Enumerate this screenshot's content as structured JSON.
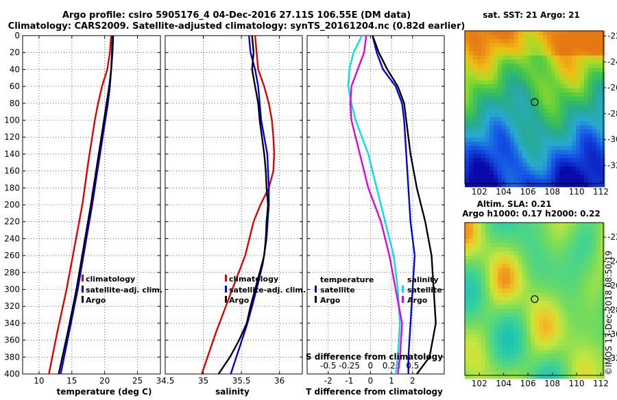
{
  "header": {
    "line1": "Argo profile: csiro 5905176_4 04-Dec-2016 27.11S 106.55E (DM data)",
    "line2": "Climatology: CARS2009. Satellite-adjusted climatology: synTS_20161204.nc (0.82d earlier)"
  },
  "watermark": "©IMOS 13-Dec-2018 08:50:19",
  "colors": {
    "climatology": "#e00000",
    "satellite": "#0000e0",
    "argo": "#000000",
    "t_diff": "#00e0e0",
    "s_diff": "#e000e0"
  },
  "chart_data": [
    {
      "id": "temperature",
      "type": "line",
      "xlabel": "temperature (deg C)",
      "xlim": [
        7.5,
        28.5
      ],
      "xticks": [
        10,
        15,
        20,
        25
      ],
      "ylim": [
        400,
        0
      ],
      "yticks": [
        0,
        20,
        40,
        60,
        80,
        100,
        120,
        140,
        160,
        180,
        200,
        220,
        240,
        260,
        280,
        300,
        320,
        340,
        360,
        380,
        400
      ],
      "grid": true,
      "legend": [
        "climatology",
        "satellite-adj. clim.",
        "Argo"
      ],
      "series": [
        {
          "name": "climatology",
          "color": "#e00000",
          "depth": [
            0,
            20,
            40,
            60,
            80,
            100,
            150,
            200,
            250,
            300,
            350,
            400
          ],
          "values": [
            21.0,
            20.8,
            20.4,
            19.6,
            19.0,
            18.5,
            17.5,
            16.6,
            15.4,
            14.2,
            12.8,
            11.5
          ]
        },
        {
          "name": "satellite-adj. clim.",
          "color": "#0000e0",
          "depth": [
            0,
            20,
            40,
            60,
            80,
            100,
            150,
            200,
            250,
            300,
            350,
            400
          ],
          "values": [
            21.2,
            21.1,
            21.0,
            20.8,
            20.5,
            20.1,
            19.1,
            18.1,
            17.0,
            15.9,
            14.6,
            13.3
          ]
        },
        {
          "name": "Argo",
          "color": "#000000",
          "depth": [
            0,
            20,
            40,
            60,
            80,
            100,
            150,
            200,
            250,
            300,
            350,
            400
          ],
          "values": [
            21.3,
            21.2,
            21.0,
            20.7,
            20.3,
            19.9,
            18.9,
            17.9,
            16.8,
            15.7,
            14.4,
            13.0
          ]
        }
      ]
    },
    {
      "id": "salinity",
      "type": "line",
      "xlabel": "salinity",
      "xlim": [
        34.5,
        36.3
      ],
      "xticks": [
        34.5,
        35,
        35.5,
        36
      ],
      "xtick_labels": [
        "34.5",
        "35",
        "35.5",
        "36"
      ],
      "ylim": [
        400,
        0
      ],
      "grid": true,
      "legend": [
        "climatology",
        "satellite-adj. clim.",
        "Argo"
      ],
      "series": [
        {
          "name": "climatology",
          "color": "#e00000",
          "depth": [
            0,
            20,
            40,
            60,
            80,
            100,
            120,
            140,
            160,
            180,
            200,
            220,
            260,
            300,
            350,
            400
          ],
          "values": [
            35.68,
            35.7,
            35.72,
            35.8,
            35.86,
            35.9,
            35.92,
            35.93,
            35.92,
            35.86,
            35.75,
            35.66,
            35.55,
            35.38,
            35.17,
            34.98
          ]
        },
        {
          "name": "satellite-adj. clim.",
          "color": "#0000e0",
          "depth": [
            0,
            20,
            40,
            60,
            80,
            100,
            140,
            180,
            200,
            240,
            270,
            300,
            340,
            400
          ],
          "values": [
            35.6,
            35.62,
            35.68,
            35.72,
            35.74,
            35.76,
            35.84,
            35.86,
            35.86,
            35.83,
            35.78,
            35.7,
            35.58,
            35.36
          ]
        },
        {
          "name": "Argo",
          "color": "#000000",
          "depth": [
            0,
            10,
            20,
            40,
            60,
            80,
            100,
            120,
            140,
            160,
            180,
            200,
            220,
            240,
            260,
            280,
            300,
            320,
            340,
            360,
            380,
            400
          ],
          "values": [
            35.64,
            35.65,
            35.66,
            35.64,
            35.68,
            35.72,
            35.74,
            35.77,
            35.8,
            35.82,
            35.83,
            35.85,
            35.83,
            35.82,
            35.8,
            35.74,
            35.68,
            35.62,
            35.57,
            35.47,
            35.35,
            35.2
          ]
        }
      ]
    },
    {
      "id": "difference",
      "type": "line",
      "xlabel": "T difference from climatology",
      "xlim": [
        -3,
        3.5
      ],
      "xticks": [
        -2,
        -1,
        0,
        1,
        2
      ],
      "top_axis_label": "S difference from climatology",
      "top_ticks": [
        "-0.5",
        "-0.25",
        "0",
        "0.25",
        "0.5"
      ],
      "top_tick_values": [
        -2,
        -1,
        0,
        1,
        2
      ],
      "ylim": [
        400,
        0
      ],
      "grid": true,
      "legend_left": {
        "title": "temperature",
        "items": [
          "satellite",
          "Argo"
        ]
      },
      "legend_right": {
        "title": "salinity",
        "items": [
          "satellite",
          "Argo"
        ]
      },
      "series": [
        {
          "name": "temperature satellite",
          "color": "#0000e0",
          "depth": [
            0,
            20,
            40,
            60,
            80,
            100,
            140,
            180,
            220,
            260,
            300,
            340,
            380,
            400
          ],
          "values": [
            0.1,
            0.3,
            0.6,
            1.2,
            1.5,
            1.6,
            1.7,
            1.8,
            1.9,
            2.1,
            2.0,
            1.9,
            1.8,
            1.8
          ]
        },
        {
          "name": "temperature Argo",
          "color": "#000000",
          "depth": [
            0,
            20,
            40,
            60,
            80,
            100,
            140,
            180,
            220,
            260,
            300,
            340,
            380,
            400
          ],
          "values": [
            0.1,
            0.4,
            0.8,
            1.3,
            1.6,
            1.7,
            1.9,
            2.2,
            2.6,
            2.9,
            3.0,
            3.1,
            2.8,
            2.2
          ]
        },
        {
          "name": "salinity satellite",
          "color": "#00e0e0",
          "depth": [
            0,
            20,
            40,
            60,
            80,
            100,
            140,
            180,
            220,
            260,
            300,
            340,
            380,
            400
          ],
          "values": [
            -0.4,
            -0.8,
            -1.0,
            -1.05,
            -0.9,
            -0.7,
            -0.1,
            0.3,
            0.7,
            1.1,
            1.3,
            1.4,
            1.3,
            1.2
          ]
        },
        {
          "name": "salinity Argo",
          "color": "#e000e0",
          "depth": [
            0,
            20,
            40,
            60,
            80,
            100,
            140,
            180,
            220,
            260,
            300,
            340,
            380,
            400
          ],
          "values": [
            -0.2,
            -0.3,
            -0.6,
            -0.9,
            -0.95,
            -0.9,
            -0.5,
            -0.1,
            0.5,
            0.9,
            1.2,
            1.5,
            1.4,
            1.3
          ]
        }
      ]
    },
    {
      "id": "sst_map",
      "type": "heatmap",
      "title": "sat. SST: 21 Argo: 21",
      "xticks": [
        102,
        104,
        106,
        108,
        110,
        112
      ],
      "yticks": [
        -22,
        -24,
        -26,
        -28,
        -30,
        -32
      ],
      "xlim": [
        100.8,
        112.2
      ],
      "ylim": [
        -21.6,
        -33.4
      ],
      "float_position": [
        106.55,
        -27.11
      ]
    },
    {
      "id": "sla_map",
      "type": "heatmap",
      "title": "Altim. SLA: 0.21",
      "subtitle": "Argo h1000: 0.17 h2000: 0.22",
      "xticks": [
        102,
        104,
        106,
        108,
        110,
        112
      ],
      "yticks": [
        -22,
        -24,
        -26,
        -28,
        -30,
        -32
      ],
      "xlim": [
        100.8,
        112.2
      ],
      "ylim": [
        -20.8,
        -33.4
      ],
      "float_position": [
        106.55,
        -27.11
      ]
    }
  ]
}
